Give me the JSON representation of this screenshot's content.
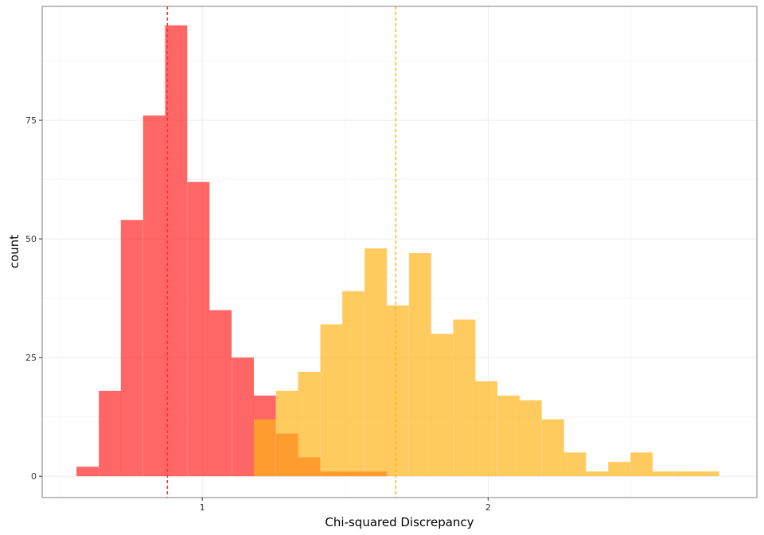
{
  "chart_data": {
    "type": "histogram",
    "xlabel": "Chi-squared Discrepancy",
    "ylabel": "count",
    "xlim": [
      0.44,
      2.94
    ],
    "ylim": [
      -4.5,
      99
    ],
    "x_ticks": [
      1,
      2
    ],
    "x_tick_labels": [
      "1",
      "2"
    ],
    "y_ticks": [
      0,
      25,
      50,
      75
    ],
    "y_tick_labels": [
      "0",
      "25",
      "50",
      "75"
    ],
    "grid": true,
    "legend": "none",
    "bin_width": 0.0775,
    "series": [
      {
        "color": "#ff3333",
        "opacity": 0.75,
        "bins": [
          {
            "x0": 0.56,
            "count": 2
          },
          {
            "x0": 0.638,
            "count": 18
          },
          {
            "x0": 0.715,
            "count": 54
          },
          {
            "x0": 0.793,
            "count": 76
          },
          {
            "x0": 0.87,
            "count": 95
          },
          {
            "x0": 0.948,
            "count": 62
          },
          {
            "x0": 1.025,
            "count": 35
          },
          {
            "x0": 1.103,
            "count": 25
          },
          {
            "x0": 1.18,
            "count": 17
          },
          {
            "x0": 1.258,
            "count": 9
          },
          {
            "x0": 1.335,
            "count": 4
          },
          {
            "x0": 1.413,
            "count": 1
          },
          {
            "x0": 1.49,
            "count": 1
          },
          {
            "x0": 1.568,
            "count": 1
          }
        ],
        "vline": 0.878
      },
      {
        "color": "#ffb31a",
        "opacity": 0.7,
        "bins": [
          {
            "x0": 1.18,
            "count": 12
          },
          {
            "x0": 1.258,
            "count": 18
          },
          {
            "x0": 1.335,
            "count": 22
          },
          {
            "x0": 1.413,
            "count": 32
          },
          {
            "x0": 1.49,
            "count": 39
          },
          {
            "x0": 1.568,
            "count": 48
          },
          {
            "x0": 1.645,
            "count": 36
          },
          {
            "x0": 1.723,
            "count": 47
          },
          {
            "x0": 1.8,
            "count": 30
          },
          {
            "x0": 1.878,
            "count": 33
          },
          {
            "x0": 1.955,
            "count": 20
          },
          {
            "x0": 2.033,
            "count": 17
          },
          {
            "x0": 2.11,
            "count": 16
          },
          {
            "x0": 2.188,
            "count": 12
          },
          {
            "x0": 2.265,
            "count": 5
          },
          {
            "x0": 2.343,
            "count": 1
          },
          {
            "x0": 2.42,
            "count": 3
          },
          {
            "x0": 2.498,
            "count": 5
          },
          {
            "x0": 2.575,
            "count": 1
          },
          {
            "x0": 2.653,
            "count": 1
          },
          {
            "x0": 2.73,
            "count": 1
          }
        ],
        "vline": 1.677
      }
    ]
  }
}
